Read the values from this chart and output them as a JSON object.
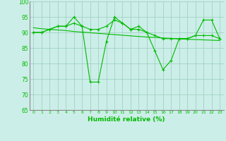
{
  "x": [
    0,
    1,
    2,
    3,
    4,
    5,
    6,
    7,
    8,
    9,
    10,
    11,
    12,
    13,
    14,
    15,
    16,
    17,
    18,
    19,
    20,
    21,
    22,
    23
  ],
  "y_main": [
    90,
    90,
    91,
    92,
    92,
    95,
    92,
    74,
    74,
    87,
    95,
    93,
    91,
    92,
    90,
    84,
    78,
    81,
    88,
    88,
    89,
    94,
    94,
    88
  ],
  "y_smooth1": [
    90,
    90,
    91,
    92,
    92,
    93,
    92,
    91,
    91,
    92,
    94,
    93,
    91,
    91,
    90,
    89,
    88,
    88,
    88,
    88,
    89,
    89,
    89,
    88
  ],
  "y_trend": [
    91.5,
    91.2,
    91.0,
    90.8,
    90.6,
    90.3,
    90.1,
    89.9,
    89.7,
    89.5,
    89.3,
    89.1,
    88.9,
    88.7,
    88.5,
    88.4,
    88.2,
    88.1,
    87.9,
    87.8,
    87.7,
    87.6,
    87.5,
    87.4
  ],
  "xlabel": "Humidité relative (%)",
  "ylim": [
    65,
    100
  ],
  "xlim": [
    -0.5,
    23.5
  ],
  "yticks": [
    65,
    70,
    75,
    80,
    85,
    90,
    95,
    100
  ],
  "xticks": [
    0,
    1,
    2,
    3,
    4,
    5,
    6,
    7,
    8,
    9,
    10,
    11,
    12,
    13,
    14,
    15,
    16,
    17,
    18,
    19,
    20,
    21,
    22,
    23
  ],
  "line_color": "#00bb00",
  "bg_color": "#cceee8",
  "grid_color": "#99ccbb"
}
